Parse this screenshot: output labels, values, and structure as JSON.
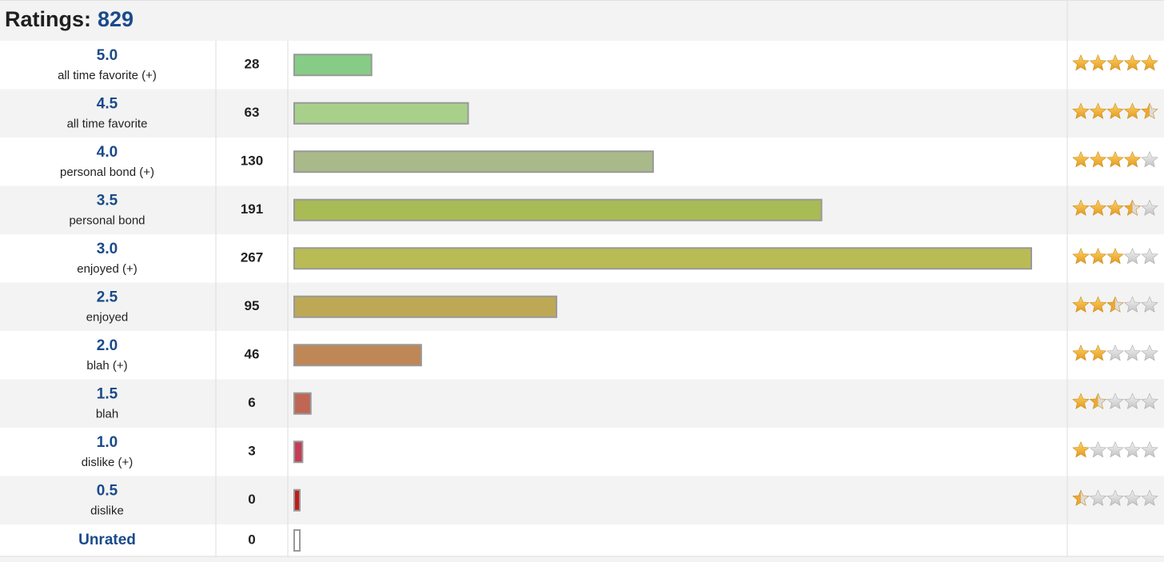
{
  "header": {
    "label": "Ratings:",
    "total": "829"
  },
  "rows": [
    {
      "rating": "5.0",
      "desc": "all time favorite (+)",
      "count": 28,
      "color": "#86cc86"
    },
    {
      "rating": "4.5",
      "desc": "all time favorite",
      "count": 63,
      "color": "#a8d08a"
    },
    {
      "rating": "4.0",
      "desc": "personal bond (+)",
      "count": 130,
      "color": "#aab98a"
    },
    {
      "rating": "3.5",
      "desc": "personal bond",
      "count": 191,
      "color": "#a9bb55"
    },
    {
      "rating": "3.0",
      "desc": "enjoyed (+)",
      "count": 267,
      "color": "#b9bc55"
    },
    {
      "rating": "2.5",
      "desc": "enjoyed",
      "count": 95,
      "color": "#bda855"
    },
    {
      "rating": "2.0",
      "desc": "blah (+)",
      "count": 46,
      "color": "#bf8755"
    },
    {
      "rating": "1.5",
      "desc": "blah",
      "count": 6,
      "color": "#bf6655"
    },
    {
      "rating": "1.0",
      "desc": "dislike (+)",
      "count": 3,
      "color": "#c43d55"
    },
    {
      "rating": "0.5",
      "desc": "dislike",
      "count": 0,
      "color": "#c01a1a"
    },
    {
      "rating": "Unrated",
      "count": 0,
      "color": "#ffffff"
    }
  ]
}
